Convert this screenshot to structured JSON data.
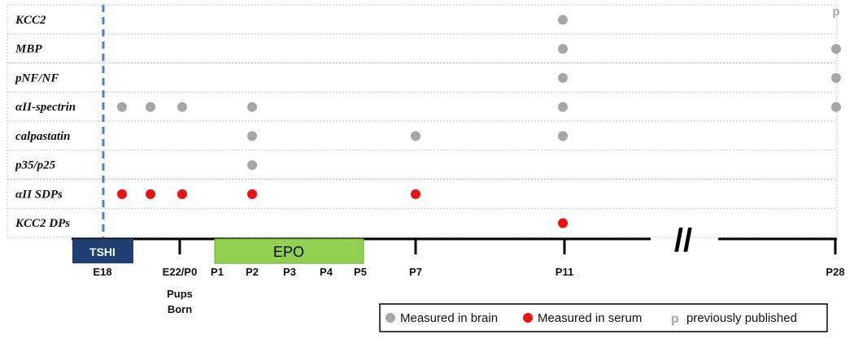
{
  "rows": [
    {
      "label": "KCC2",
      "brain": [
        "P11"
      ],
      "serum": [],
      "published": [
        "P28"
      ]
    },
    {
      "label": "MBP",
      "brain": [
        "P11",
        "P28"
      ],
      "serum": [],
      "published": []
    },
    {
      "label": "pNF/NF",
      "brain": [
        "P11",
        "P28"
      ],
      "serum": [],
      "published": []
    },
    {
      "label": "αII-spectrin",
      "brain": [
        "E18",
        "E20",
        "E22/P0",
        "P2",
        "P11",
        "P28"
      ],
      "serum": [],
      "published": []
    },
    {
      "label": "calpastatin",
      "brain": [
        "P2",
        "P7",
        "P11"
      ],
      "serum": [],
      "published": []
    },
    {
      "label": "p35/p25",
      "brain": [
        "P2"
      ],
      "serum": [],
      "published": []
    },
    {
      "label": "αII SDPs",
      "brain": [],
      "serum": [
        "E18",
        "E20",
        "E22/P0",
        "P2",
        "P7"
      ],
      "published": []
    },
    {
      "label": "KCC2 DPs",
      "brain": [],
      "serum": [
        "P11"
      ],
      "published": []
    }
  ],
  "timeline": {
    "ticks": [
      "E18",
      "E22/P0",
      "P1",
      "P2",
      "P3",
      "P4",
      "P5",
      "P7",
      "P11",
      "P28"
    ],
    "sublabels": [
      "Pups",
      "Born"
    ],
    "tshi_label": "TSHI",
    "epo_label": "EPO",
    "break_mark": "//"
  },
  "legend": {
    "brain": "Measured in brain",
    "serum": "Measured in serum",
    "published_symbol": "p",
    "published": "previously published"
  },
  "colors": {
    "brain": "#a6a6a6",
    "serum": "#ee1111",
    "tshi": "#1f3f73",
    "epo": "#92d050",
    "dashed_line": "#4f81bd"
  }
}
